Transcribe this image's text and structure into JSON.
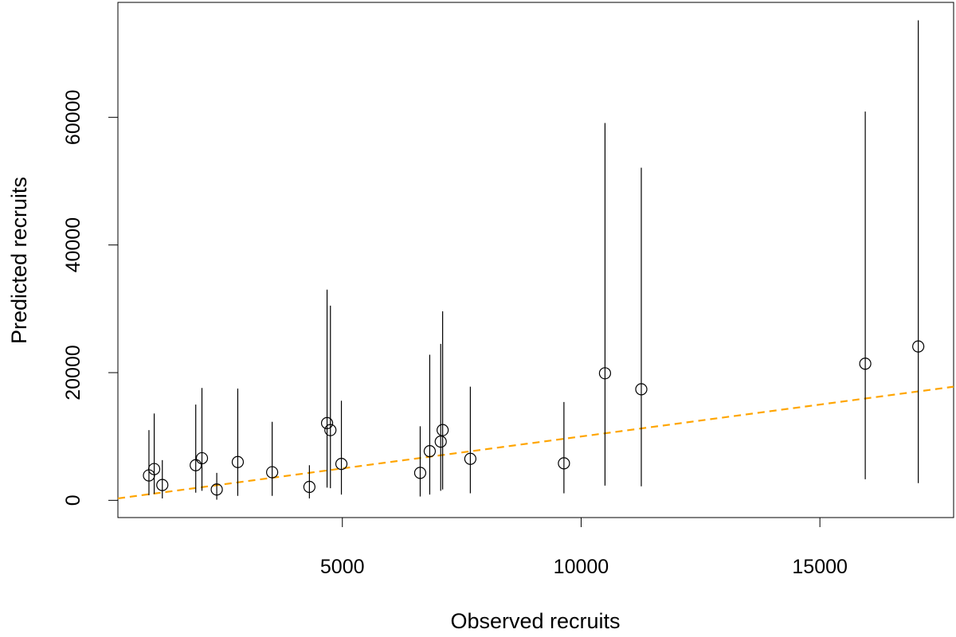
{
  "chart_data": {
    "type": "scatter",
    "title": "",
    "xlabel": "Observed recruits",
    "ylabel": "Predicted recruits",
    "xlim": [
      300,
      17800
    ],
    "ylim": [
      -2700,
      78000
    ],
    "x_ticks": [
      5000,
      10000,
      15000
    ],
    "x_tick_labels": [
      "5000",
      "10000",
      "15000"
    ],
    "y_ticks": [
      0,
      20000,
      40000,
      60000
    ],
    "y_tick_labels": [
      "0",
      "20000",
      "40000",
      "60000"
    ],
    "grid": false,
    "legend": "none",
    "point_color": "#000000",
    "line_color": "#FFA500",
    "points": [
      {
        "x": 950,
        "y": 3900,
        "lower": 800,
        "upper": 11000
      },
      {
        "x": 1060,
        "y": 4900,
        "lower": 1000,
        "upper": 13600
      },
      {
        "x": 1230,
        "y": 2400,
        "lower": 300,
        "upper": 6300
      },
      {
        "x": 1930,
        "y": 5500,
        "lower": 1200,
        "upper": 15000
      },
      {
        "x": 2060,
        "y": 6600,
        "lower": 1500,
        "upper": 17600
      },
      {
        "x": 2370,
        "y": 1700,
        "lower": 100,
        "upper": 4300
      },
      {
        "x": 2810,
        "y": 6000,
        "lower": 700,
        "upper": 17500
      },
      {
        "x": 3530,
        "y": 4400,
        "lower": 700,
        "upper": 12300
      },
      {
        "x": 4310,
        "y": 2100,
        "lower": 300,
        "upper": 5500
      },
      {
        "x": 4680,
        "y": 12100,
        "lower": 2000,
        "upper": 33000
      },
      {
        "x": 4750,
        "y": 11000,
        "lower": 1900,
        "upper": 30500
      },
      {
        "x": 4980,
        "y": 5700,
        "lower": 900,
        "upper": 15600
      },
      {
        "x": 6630,
        "y": 4300,
        "lower": 600,
        "upper": 11600
      },
      {
        "x": 6830,
        "y": 7700,
        "lower": 900,
        "upper": 22800
      },
      {
        "x": 7060,
        "y": 9200,
        "lower": 1500,
        "upper": 24500
      },
      {
        "x": 7100,
        "y": 11000,
        "lower": 1700,
        "upper": 29600
      },
      {
        "x": 7680,
        "y": 6500,
        "lower": 1100,
        "upper": 17800
      },
      {
        "x": 9640,
        "y": 5800,
        "lower": 1100,
        "upper": 15400
      },
      {
        "x": 10500,
        "y": 19900,
        "lower": 2300,
        "upper": 59100
      },
      {
        "x": 11260,
        "y": 17400,
        "lower": 2200,
        "upper": 52100
      },
      {
        "x": 15950,
        "y": 21400,
        "lower": 3300,
        "upper": 60900
      },
      {
        "x": 17060,
        "y": 24100,
        "lower": 2700,
        "upper": 75200
      }
    ],
    "fit_line": {
      "x": [
        300,
        17800
      ],
      "y": [
        300,
        17800
      ]
    }
  }
}
